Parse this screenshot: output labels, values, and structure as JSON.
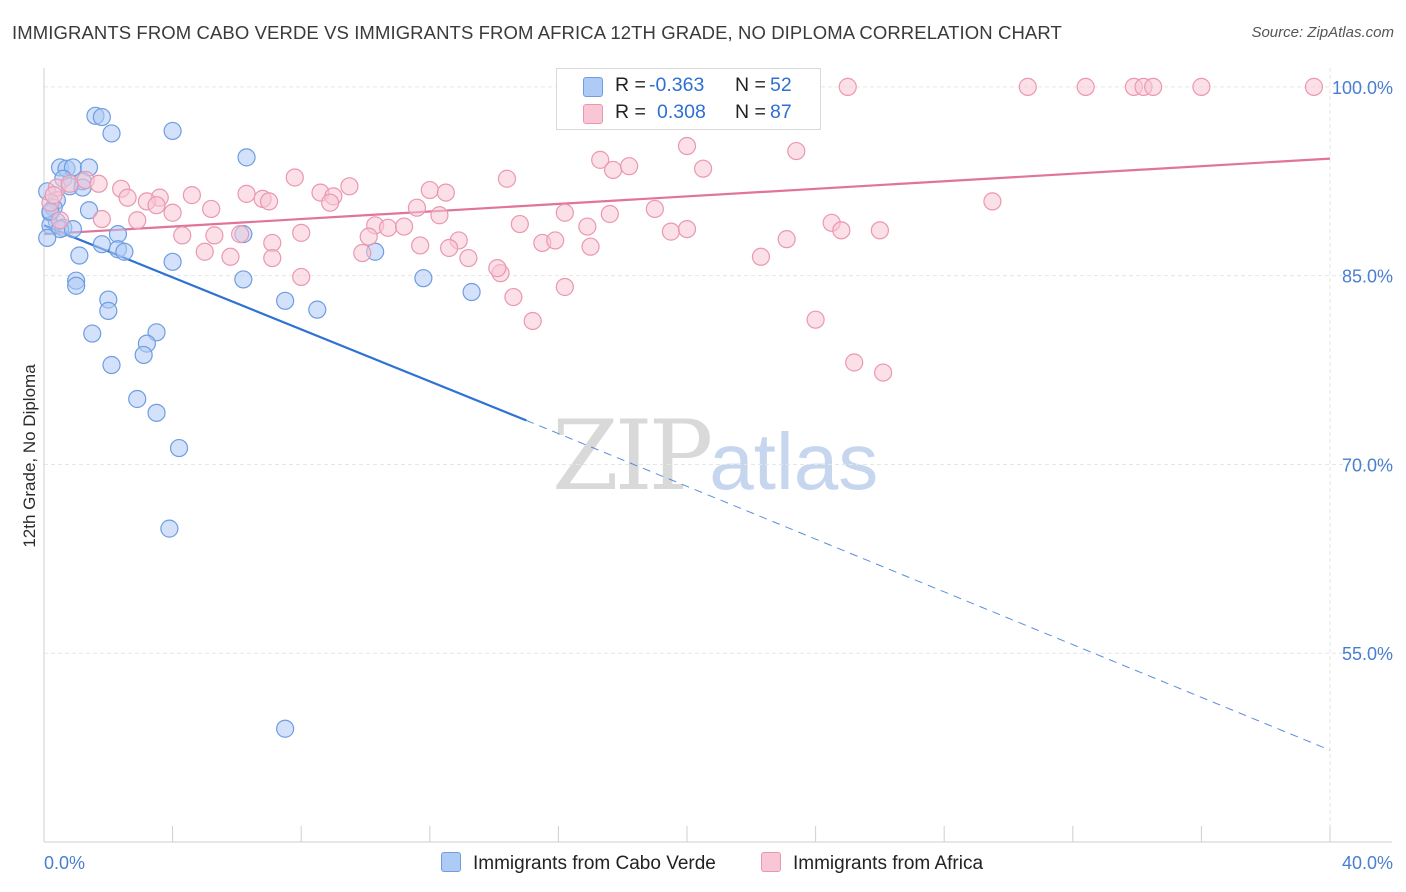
{
  "title": "IMMIGRANTS FROM CABO VERDE VS IMMIGRANTS FROM AFRICA 12TH GRADE, NO DIPLOMA CORRELATION CHART",
  "source": "Source: ZipAtlas.com",
  "watermark": {
    "zip": "ZIP",
    "atlas": "atlas"
  },
  "legend": {
    "rows": [
      {
        "r_label": "R =",
        "r_value": "-0.363",
        "n_label": "N =",
        "n_value": "52"
      },
      {
        "r_label": "R =",
        "r_value": "0.308",
        "n_label": "N =",
        "n_value": "87"
      }
    ]
  },
  "bottom_legend": [
    "Immigrants from Cabo Verde",
    "Immigrants from Africa"
  ],
  "chart_data": {
    "type": "scatter",
    "title": "IMMIGRANTS FROM CABO VERDE VS IMMIGRANTS FROM AFRICA 12TH GRADE, NO DIPLOMA CORRELATION CHART",
    "xlabel": "",
    "ylabel": "12th Grade, No Diploma",
    "xlim": [
      0,
      40
    ],
    "ylim": [
      40,
      101.5
    ],
    "x_tick_labels": [
      "0.0%",
      "40.0%"
    ],
    "y_ticks": [
      55,
      70,
      85,
      100
    ],
    "y_tick_labels": [
      "55.0%",
      "70.0%",
      "85.0%",
      "100.0%"
    ],
    "grid": true,
    "legend_position": "top-center",
    "colors": {
      "blue_fill": "#aecbf5",
      "blue_stroke": "#6e9de0",
      "blue_line": "#2f72d3",
      "pink_fill": "#f8c6d5",
      "pink_stroke": "#eb97b1",
      "pink_line": "#e2739a",
      "grid": "#e6e6e6",
      "axis_text": "#4a7fd0"
    },
    "series": [
      {
        "name": "Immigrants from Cabo Verde",
        "color": "blue",
        "points": [
          [
            1.6,
            97.7
          ],
          [
            1.8,
            97.6
          ],
          [
            2.1,
            96.3
          ],
          [
            4.0,
            96.5
          ],
          [
            6.3,
            94.4
          ],
          [
            0.5,
            93.6
          ],
          [
            0.7,
            93.5
          ],
          [
            0.9,
            93.6
          ],
          [
            1.4,
            93.6
          ],
          [
            0.6,
            92.7
          ],
          [
            1.2,
            92.5
          ],
          [
            0.8,
            92.1
          ],
          [
            1.2,
            92.0
          ],
          [
            0.1,
            91.7
          ],
          [
            0.4,
            91.0
          ],
          [
            0.3,
            90.4
          ],
          [
            1.4,
            90.2
          ],
          [
            0.2,
            90.0
          ],
          [
            0.4,
            89.3
          ],
          [
            0.2,
            89.0
          ],
          [
            0.6,
            88.8
          ],
          [
            0.5,
            88.7
          ],
          [
            0.9,
            88.7
          ],
          [
            0.1,
            88.0
          ],
          [
            2.3,
            88.3
          ],
          [
            6.2,
            88.3
          ],
          [
            1.8,
            87.5
          ],
          [
            2.3,
            87.1
          ],
          [
            2.5,
            86.9
          ],
          [
            1.1,
            86.6
          ],
          [
            4.0,
            86.1
          ],
          [
            10.3,
            86.9
          ],
          [
            6.2,
            84.7
          ],
          [
            11.8,
            84.8
          ],
          [
            1.0,
            84.6
          ],
          [
            1.0,
            84.2
          ],
          [
            13.3,
            83.7
          ],
          [
            2.0,
            83.1
          ],
          [
            7.5,
            83.0
          ],
          [
            2.0,
            82.2
          ],
          [
            8.5,
            82.3
          ],
          [
            1.5,
            80.4
          ],
          [
            3.5,
            80.5
          ],
          [
            3.2,
            79.6
          ],
          [
            3.1,
            78.7
          ],
          [
            2.1,
            77.9
          ],
          [
            2.9,
            75.2
          ],
          [
            3.5,
            74.1
          ],
          [
            4.2,
            71.3
          ],
          [
            3.9,
            64.9
          ],
          [
            7.5,
            49.0
          ],
          [
            0.2,
            90.1
          ]
        ],
        "trend": {
          "x0": 0,
          "y0": 89.0,
          "x1": 15.0,
          "y1": 73.5,
          "dashed_to_x": 40,
          "dashed_to_y": 47.3
        }
      },
      {
        "name": "Immigrants from Africa",
        "color": "pink",
        "points": [
          [
            20.9,
            100.0
          ],
          [
            25.0,
            100.0
          ],
          [
            30.6,
            100.0
          ],
          [
            32.4,
            100.0
          ],
          [
            33.9,
            100.0
          ],
          [
            34.2,
            100.0
          ],
          [
            34.5,
            100.0
          ],
          [
            36.0,
            100.0
          ],
          [
            39.5,
            100.0
          ],
          [
            20.0,
            95.3
          ],
          [
            23.4,
            94.9
          ],
          [
            17.3,
            94.2
          ],
          [
            17.7,
            93.4
          ],
          [
            18.2,
            93.7
          ],
          [
            20.5,
            93.5
          ],
          [
            7.8,
            92.8
          ],
          [
            14.4,
            92.7
          ],
          [
            9.5,
            92.1
          ],
          [
            12.0,
            91.8
          ],
          [
            12.5,
            91.6
          ],
          [
            0.4,
            92.0
          ],
          [
            0.8,
            92.3
          ],
          [
            1.3,
            92.6
          ],
          [
            1.7,
            92.3
          ],
          [
            2.4,
            91.9
          ],
          [
            8.6,
            91.6
          ],
          [
            9.0,
            91.3
          ],
          [
            3.6,
            91.2
          ],
          [
            4.6,
            91.4
          ],
          [
            6.3,
            91.5
          ],
          [
            6.8,
            91.1
          ],
          [
            2.6,
            91.2
          ],
          [
            3.2,
            90.9
          ],
          [
            3.5,
            90.6
          ],
          [
            7.0,
            90.9
          ],
          [
            8.9,
            90.8
          ],
          [
            11.6,
            90.4
          ],
          [
            0.2,
            90.8
          ],
          [
            4.0,
            90.0
          ],
          [
            5.2,
            90.3
          ],
          [
            29.5,
            90.9
          ],
          [
            16.2,
            90.0
          ],
          [
            17.6,
            89.9
          ],
          [
            19.0,
            90.3
          ],
          [
            12.3,
            89.8
          ],
          [
            1.8,
            89.5
          ],
          [
            2.9,
            89.4
          ],
          [
            0.5,
            89.4
          ],
          [
            10.3,
            89.0
          ],
          [
            10.7,
            88.8
          ],
          [
            11.2,
            88.9
          ],
          [
            14.8,
            89.1
          ],
          [
            16.9,
            88.9
          ],
          [
            24.5,
            89.2
          ],
          [
            8.0,
            88.4
          ],
          [
            5.3,
            88.2
          ],
          [
            6.1,
            88.3
          ],
          [
            10.1,
            88.1
          ],
          [
            4.3,
            88.2
          ],
          [
            12.9,
            87.8
          ],
          [
            7.1,
            87.6
          ],
          [
            15.5,
            87.6
          ],
          [
            15.9,
            87.8
          ],
          [
            19.5,
            88.5
          ],
          [
            20.0,
            88.7
          ],
          [
            23.1,
            87.9
          ],
          [
            24.8,
            88.6
          ],
          [
            26.0,
            88.6
          ],
          [
            5.0,
            86.9
          ],
          [
            9.9,
            86.8
          ],
          [
            11.7,
            87.4
          ],
          [
            12.6,
            87.2
          ],
          [
            13.2,
            86.4
          ],
          [
            17.0,
            87.3
          ],
          [
            5.8,
            86.5
          ],
          [
            7.1,
            86.4
          ],
          [
            14.2,
            85.2
          ],
          [
            14.1,
            85.6
          ],
          [
            8.0,
            84.9
          ],
          [
            14.6,
            83.3
          ],
          [
            16.2,
            84.1
          ],
          [
            15.2,
            81.4
          ],
          [
            24.0,
            81.5
          ],
          [
            25.2,
            78.1
          ],
          [
            26.1,
            77.3
          ],
          [
            22.3,
            86.5
          ],
          [
            0.3,
            91.4
          ]
        ],
        "trend": {
          "x0": 0,
          "y0": 88.3,
          "x1": 40,
          "y1": 94.3
        }
      }
    ]
  }
}
